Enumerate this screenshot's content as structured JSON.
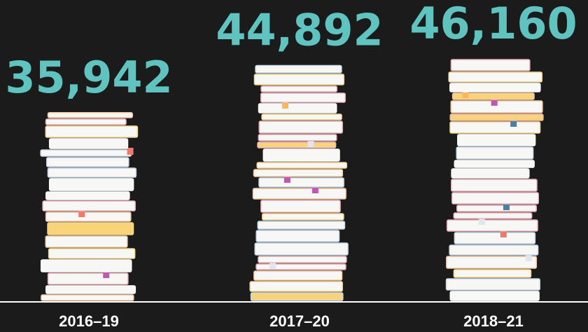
{
  "chart_data": {
    "type": "bar",
    "categories": [
      "2016–19",
      "2017–20",
      "2018–21"
    ],
    "values": [
      35942,
      44892,
      46160
    ],
    "value_labels": [
      "35,942",
      "44,892",
      "46,160"
    ],
    "color": "#f7f7f5",
    "label_color": "#5fc4bf"
  }
}
